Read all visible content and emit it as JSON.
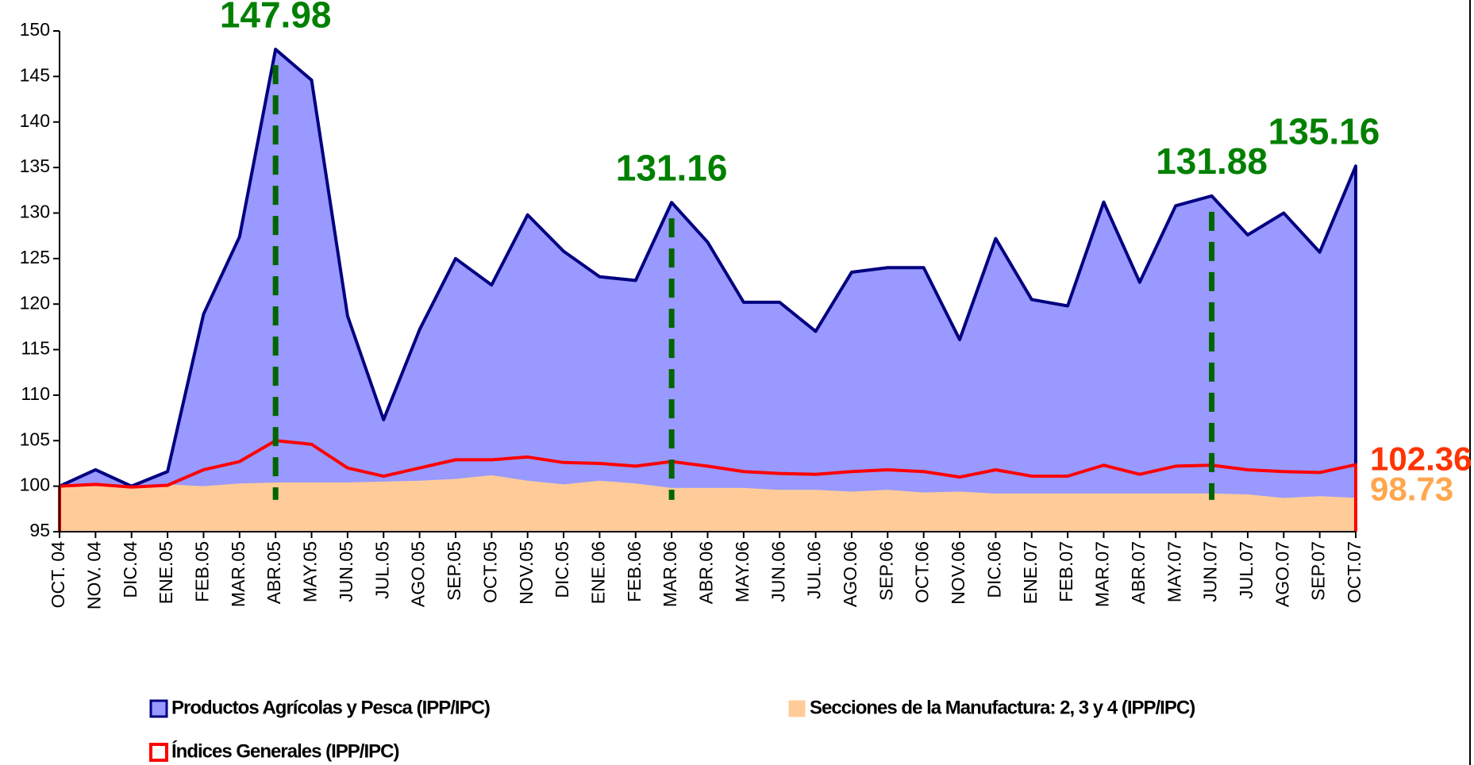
{
  "chart_data": {
    "type": "area",
    "categories": [
      "OCT. 04",
      "NOV. 04",
      "DIC.04",
      "ENE.05",
      "FEB.05",
      "MAR.05",
      "ABR.05",
      "MAY.05",
      "JUN.05",
      "JUL.05",
      "AGO.05",
      "SEP.05",
      "OCT.05",
      "NOV.05",
      "DIC.05",
      "ENE.06",
      "FEB.06",
      "MAR.06",
      "ABR.06",
      "MAY.06",
      "JUN.06",
      "JUL.06",
      "AGO.06",
      "SEP.06",
      "OCT.06",
      "NOV.06",
      "DIC.06",
      "ENE.07",
      "FEB.07",
      "MAR.07",
      "ABR.07",
      "MAY.07",
      "JUN.07",
      "JUL.07",
      "AGO.07",
      "SEP.07",
      "OCT.07"
    ],
    "series": [
      {
        "name": "Productos Agrícolas y Pesca (IPP/IPC)",
        "color": "#9999ff",
        "line_color": "#000080",
        "values": [
          100,
          101.8,
          100,
          101.6,
          118.9,
          127.4,
          147.98,
          144.6,
          118.7,
          107.3,
          117.2,
          125,
          122.1,
          129.8,
          125.8,
          123,
          122.6,
          131.16,
          126.8,
          120.2,
          120.2,
          117,
          123.5,
          124,
          124,
          116.1,
          127.2,
          120.5,
          119.8,
          131.2,
          122.4,
          130.8,
          131.88,
          127.6,
          130,
          125.7,
          135.16
        ],
        "value_labels": [
          null,
          null,
          null,
          null,
          null,
          null,
          "147.98",
          null,
          null,
          null,
          null,
          null,
          null,
          null,
          null,
          null,
          null,
          "131.16",
          null,
          null,
          null,
          null,
          null,
          null,
          null,
          null,
          null,
          null,
          null,
          null,
          null,
          null,
          "131.88",
          null,
          null,
          null,
          "135.16"
        ]
      },
      {
        "name": "Secciones de la Manufactura: 2, 3 y 4 (IPP/IPC)",
        "color": "#ffcc99",
        "values": [
          100,
          100,
          100,
          100.2,
          100,
          100.3,
          100.4,
          100.4,
          100.4,
          100.5,
          100.6,
          100.8,
          101.2,
          100.6,
          100.2,
          100.6,
          100.3,
          99.8,
          99.8,
          99.8,
          99.6,
          99.6,
          99.4,
          99.6,
          99.3,
          99.4,
          99.2,
          99.2,
          99.2,
          99.2,
          99.2,
          99.2,
          99.2,
          99.1,
          98.7,
          98.9,
          98.73
        ],
        "value_labels": [
          null,
          null,
          null,
          null,
          null,
          null,
          null,
          null,
          null,
          null,
          null,
          null,
          null,
          null,
          null,
          null,
          null,
          null,
          null,
          null,
          null,
          null,
          null,
          null,
          null,
          null,
          null,
          null,
          null,
          null,
          null,
          null,
          null,
          null,
          null,
          null,
          "98.73"
        ]
      },
      {
        "name": "Índices Generales (IPP/IPC)",
        "color": "#ff0000",
        "style": "line",
        "values": [
          100,
          100.2,
          99.9,
          100.1,
          101.8,
          102.7,
          105,
          104.6,
          102,
          101.1,
          102,
          102.9,
          102.9,
          103.2,
          102.6,
          102.5,
          102.2,
          102.7,
          102.2,
          101.6,
          101.4,
          101.3,
          101.6,
          101.8,
          101.6,
          101,
          101.8,
          101.1,
          101.1,
          102.3,
          101.3,
          102.2,
          102.3,
          101.8,
          101.6,
          101.5,
          102.36
        ],
        "value_labels": [
          null,
          null,
          null,
          null,
          null,
          null,
          null,
          null,
          null,
          null,
          null,
          null,
          null,
          null,
          null,
          null,
          null,
          null,
          null,
          null,
          null,
          null,
          null,
          null,
          null,
          null,
          null,
          null,
          null,
          null,
          null,
          null,
          null,
          null,
          null,
          null,
          "102.36"
        ]
      }
    ],
    "ylim": [
      95,
      150
    ],
    "yticks": [
      95,
      100,
      105,
      110,
      115,
      120,
      125,
      130,
      135,
      140,
      145,
      150
    ],
    "grid": false
  }
}
